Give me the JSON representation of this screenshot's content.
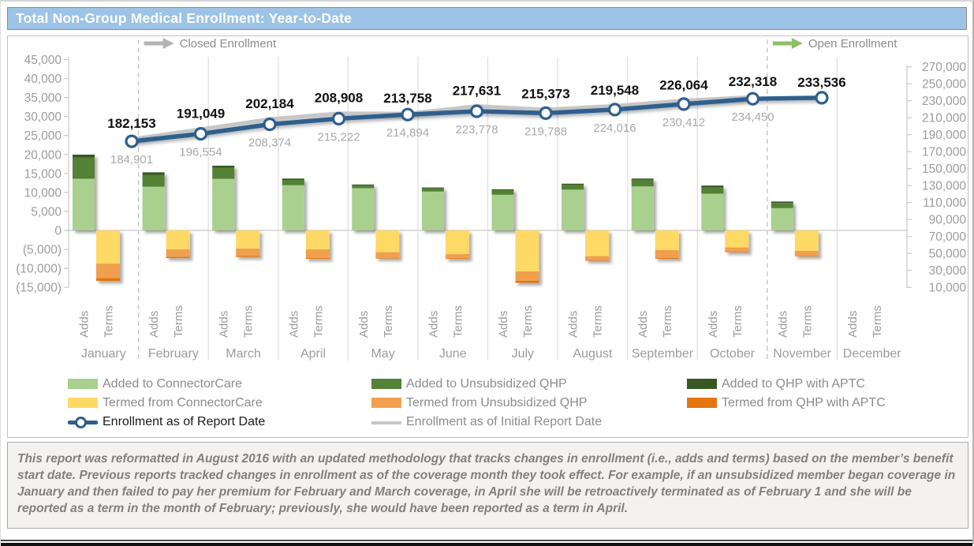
{
  "page": {
    "title": "Total Non-Group Medical Enrollment: Year-to-Date"
  },
  "annotations": {
    "closed_label": "Closed Enrollment",
    "open_label": "Open Enrollment",
    "closed_arrow_color": "#b3b3b3",
    "open_arrow_color": "#8cc063",
    "closed_boundary_index": 1,
    "open_boundary_index": 10
  },
  "chart_data": {
    "type": "combo-stacked-bar-line",
    "categories": [
      "January",
      "February",
      "March",
      "April",
      "May",
      "June",
      "July",
      "August",
      "September",
      "October",
      "November",
      "December"
    ],
    "bar_sublabels": [
      "Adds",
      "Terms"
    ],
    "left_axis": {
      "min": -15000,
      "max": 45000,
      "step": 5000
    },
    "right_axis": {
      "min": 10000,
      "max": 270000,
      "step": 20000
    },
    "series": [
      {
        "name": "Added to ConnectorCare",
        "type": "bar",
        "stack": "Adds",
        "color": "#a9d08e",
        "values": [
          13600,
          11500,
          13600,
          11900,
          11100,
          10250,
          9400,
          10750,
          11600,
          9700,
          5900,
          0
        ]
      },
      {
        "name": "Added to Unsubsidized QHP",
        "type": "bar",
        "stack": "Adds",
        "color": "#538135",
        "values": [
          5600,
          3100,
          2900,
          1400,
          800,
          850,
          1200,
          1300,
          1800,
          1550,
          1300,
          0
        ]
      },
      {
        "name": "Added to QHP with APTC",
        "type": "bar",
        "stack": "Adds",
        "color": "#385723",
        "values": [
          750,
          700,
          550,
          350,
          200,
          200,
          200,
          250,
          250,
          550,
          400,
          0
        ]
      },
      {
        "name": "Termed from ConnectorCare",
        "type": "bar",
        "stack": "Terms",
        "color": "#ffd965",
        "values": [
          -8750,
          -5000,
          -4800,
          -5000,
          -5750,
          -6250,
          -10800,
          -6800,
          -5200,
          -4500,
          -5400,
          0
        ]
      },
      {
        "name": "Termed from Unsubsidized QHP",
        "type": "bar",
        "stack": "Terms",
        "color": "#f0a04e",
        "values": [
          -3850,
          -2000,
          -1900,
          -2300,
          -1500,
          -1100,
          -2500,
          -1050,
          -2050,
          -1100,
          -1250,
          0
        ]
      },
      {
        "name": "Termed from QHP with APTC",
        "type": "bar",
        "stack": "Terms",
        "color": "#e5750e",
        "values": [
          -700,
          -300,
          -300,
          -200,
          -150,
          -150,
          -500,
          -150,
          -200,
          -150,
          -150,
          0
        ]
      },
      {
        "name": "Enrollment as of Report Date",
        "type": "line",
        "axis": "right",
        "color": "#2d5f8d",
        "marker": true,
        "values": [
          182153,
          191049,
          202184,
          208908,
          213758,
          217631,
          215373,
          219548,
          226064,
          232318,
          233536,
          null
        ]
      },
      {
        "name": "Enrollment as of Initial Report Date",
        "type": "line",
        "axis": "right",
        "color": "#c6c6c6",
        "marker": false,
        "values": [
          184901,
          196554,
          208374,
          215222,
          214894,
          223778,
          219788,
          224016,
          230412,
          234450,
          null,
          null
        ]
      }
    ]
  },
  "footnote": "This report was reformatted in August 2016 with an updated methodology that tracks changes in enrollment (i.e., adds and terms) based on the member’s benefit start date.  Previous reports tracked changes in enrollment as of the coverage month they took effect.  For example, if an unsubsidized member began coverage in January and then failed to pay her premium for February and March coverage, in April she will be retroactively terminated as of February 1 and she will be reported as a term in the month of February; previously, she would have been reported as a term in April."
}
